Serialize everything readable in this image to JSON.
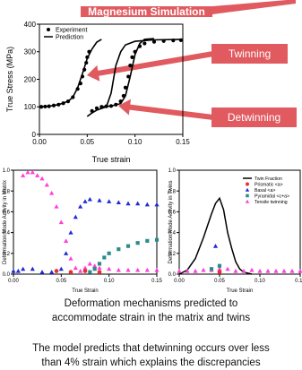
{
  "banner": "Magnesium Simulation",
  "callouts": {
    "twinning": "Twinning",
    "detwinning": "Detwinning"
  },
  "caption": {
    "line1": "Deformation mechanisms predicted to",
    "line2": "accommodate strain in the matrix and twins"
  },
  "bottom_text": {
    "line1": "The model predicts that detwinning occurs over less",
    "line2": "than 4% strain which explains the discrepancies"
  },
  "colors": {
    "callout": "#e05a5f",
    "prismatic": "#e8302b",
    "basal": "#1f2bd6",
    "pyramidal": "#2a8c8a",
    "tensile_twin": "#ff3fd8"
  },
  "chart_data": [
    {
      "type": "line",
      "xlabel": "True strain",
      "ylabel": "True Stress (MPa)",
      "xlim": [
        0,
        0.15
      ],
      "ylim": [
        0,
        400
      ],
      "xticks": [
        "0.00",
        "0.05",
        "0.10",
        "0.15"
      ],
      "yticks": [
        "0",
        "100",
        "200",
        "300",
        "400"
      ],
      "legend": [
        "Experiment",
        "Prediction"
      ],
      "series": [
        {
          "name": "Experiment",
          "style": "markers",
          "segments": [
            [
              [
                0.002,
                100
              ],
              [
                0.006,
                101
              ],
              [
                0.01,
                102
              ],
              [
                0.015,
                105
              ],
              [
                0.02,
                108
              ],
              [
                0.025,
                113
              ],
              [
                0.03,
                120
              ],
              [
                0.035,
                135
              ],
              [
                0.04,
                165
              ],
              [
                0.043,
                185
              ],
              [
                0.045,
                210
              ],
              [
                0.047,
                235
              ],
              [
                0.049,
                260
              ],
              [
                0.05,
                280
              ],
              [
                0.052,
                300
              ]
            ],
            [
              [
                0.055,
                85
              ],
              [
                0.06,
                95
              ],
              [
                0.065,
                100
              ],
              [
                0.07,
                102
              ],
              [
                0.075,
                103
              ],
              [
                0.08,
                108
              ],
              [
                0.085,
                120
              ],
              [
                0.088,
                140
              ],
              [
                0.09,
                170
              ],
              [
                0.093,
                210
              ],
              [
                0.095,
                250
              ],
              [
                0.097,
                280
              ],
              [
                0.1,
                300
              ],
              [
                0.105,
                320
              ],
              [
                0.11,
                330
              ],
              [
                0.12,
                336
              ],
              [
                0.13,
                339
              ],
              [
                0.14,
                341
              ],
              [
                0.148,
                342
              ]
            ]
          ]
        },
        {
          "name": "Prediction",
          "style": "line",
          "segments": [
            [
              [
                0,
                100
              ],
              [
                0.01,
                102
              ],
              [
                0.02,
                108
              ],
              [
                0.03,
                120
              ],
              [
                0.035,
                135
              ],
              [
                0.04,
                170
              ],
              [
                0.045,
                220
              ],
              [
                0.05,
                275
              ],
              [
                0.055,
                310
              ],
              [
                0.06,
                335
              ],
              [
                0.065,
                345
              ]
            ],
            [
              [
                0.05,
                65
              ],
              [
                0.055,
                78
              ],
              [
                0.06,
                88
              ],
              [
                0.07,
                100
              ],
              [
                0.075,
                150
              ],
              [
                0.08,
                250
              ],
              [
                0.085,
                300
              ],
              [
                0.09,
                325
              ],
              [
                0.1,
                338
              ],
              [
                0.12,
                343
              ],
              [
                0.15,
                345
              ]
            ],
            [
              [
                0.065,
                100
              ],
              [
                0.075,
                103
              ],
              [
                0.085,
                112
              ],
              [
                0.09,
                140
              ],
              [
                0.095,
                210
              ],
              [
                0.1,
                290
              ],
              [
                0.105,
                330
              ],
              [
                0.11,
                345
              ],
              [
                0.12,
                348
              ]
            ]
          ]
        }
      ]
    },
    {
      "type": "scatter",
      "xlabel": "True Strain",
      "ylabel": "Deformation Mode Activity in Matrix",
      "xlim": [
        0,
        0.15
      ],
      "ylim": [
        0,
        1
      ],
      "xticks": [
        "0.00",
        "0.05",
        "0.10",
        "0.15"
      ],
      "yticks": [
        "0.0",
        "0.2",
        "0.4",
        "0.6",
        "0.8",
        "1.0"
      ],
      "series": [
        {
          "name": "Tensile twinning",
          "color": "#ff3fd8",
          "marker": "triangle",
          "x": [
            0.01,
            0.015,
            0.02,
            0.025,
            0.03,
            0.035,
            0.04,
            0.045,
            0.05,
            0.055,
            0.06,
            0.065,
            0.07,
            0.075,
            0.08,
            0.085,
            0.09,
            0.1,
            0.11,
            0.12,
            0.13,
            0.14,
            0.15
          ],
          "y": [
            0.95,
            0.98,
            0.98,
            0.95,
            0.92,
            0.86,
            0.78,
            0.65,
            0.5,
            0.32,
            0.15,
            0.06,
            0.03,
            0.06,
            0.1,
            0.08,
            0.06,
            0.05,
            0.04,
            0.04,
            0.04,
            0.04,
            0.04
          ]
        },
        {
          "name": "Basal",
          "color": "#1f2bd6",
          "marker": "triangle",
          "x": [
            0.0,
            0.005,
            0.01,
            0.02,
            0.03,
            0.04,
            0.05,
            0.055,
            0.06,
            0.065,
            0.07,
            0.075,
            0.08,
            0.09,
            0.1,
            0.11,
            0.12,
            0.13,
            0.14,
            0.15
          ],
          "y": [
            0.03,
            0.03,
            0.05,
            0.05,
            0.02,
            0.02,
            0.05,
            0.2,
            0.4,
            0.55,
            0.65,
            0.7,
            0.72,
            0.71,
            0.7,
            0.69,
            0.68,
            0.68,
            0.67,
            0.67
          ]
        },
        {
          "name": "Pyramidal <c+a>",
          "color": "#2a8c8a",
          "marker": "square",
          "x": [
            0.08,
            0.085,
            0.09,
            0.095,
            0.1,
            0.11,
            0.12,
            0.13,
            0.14,
            0.15
          ],
          "y": [
            0.02,
            0.05,
            0.1,
            0.16,
            0.2,
            0.24,
            0.27,
            0.3,
            0.32,
            0.33
          ]
        },
        {
          "name": "Prismatic <a>",
          "color": "#e8302b",
          "marker": "circle",
          "x": [
            0.045,
            0.06,
            0.075,
            0.09
          ],
          "y": [
            0.03,
            0.02,
            0.03,
            0.02
          ]
        }
      ]
    },
    {
      "type": "scatter",
      "xlabel": "True Strain",
      "ylabel": "Deformation Mode Activity in Twins",
      "xlim": [
        0,
        0.15
      ],
      "ylim": [
        0,
        1
      ],
      "xticks": [
        "0.00",
        "0.05",
        "0.10",
        "0.15"
      ],
      "yticks": [
        "0.0",
        "0.2",
        "0.4",
        "0.6",
        "0.8",
        "1.0"
      ],
      "legend": [
        "Twin Fraction",
        "Prismatic <a>",
        "Basal <a>",
        "Pyramidal <c+a>",
        "Tensile twinning"
      ],
      "series": [
        {
          "name": "Twin Fraction",
          "color": "#000000",
          "marker": "line",
          "x": [
            0.0,
            0.01,
            0.02,
            0.03,
            0.04,
            0.045,
            0.05,
            0.055,
            0.06,
            0.065,
            0.07,
            0.075,
            0.08,
            0.09
          ],
          "y": [
            0.0,
            0.04,
            0.15,
            0.35,
            0.58,
            0.68,
            0.73,
            0.62,
            0.4,
            0.25,
            0.12,
            0.05,
            0.02,
            0.0
          ]
        },
        {
          "name": "Tensile twinning",
          "color": "#ff3fd8",
          "marker": "triangle",
          "x": [
            0.0,
            0.01,
            0.02,
            0.03,
            0.04,
            0.05,
            0.06,
            0.07,
            0.08,
            0.09,
            0.1,
            0.11,
            0.12,
            0.13,
            0.14,
            0.15
          ],
          "y": [
            0.03,
            0.03,
            0.03,
            0.04,
            0.04,
            0.05,
            0.05,
            0.03,
            0.03,
            0.04,
            0.03,
            0.03,
            0.03,
            0.03,
            0.03,
            0.03
          ]
        },
        {
          "name": "Basal",
          "color": "#1f2bd6",
          "marker": "triangle",
          "x": [
            0.045
          ],
          "y": [
            0.27
          ]
        },
        {
          "name": "Pyramidal <c+a>",
          "color": "#2a8c8a",
          "marker": "square",
          "x": [
            0.04,
            0.05
          ],
          "y": [
            0.05,
            0.08
          ]
        },
        {
          "name": "Prismatic <a>",
          "color": "#e8302b",
          "marker": "circle",
          "x": [
            0.05
          ],
          "y": [
            0.02
          ]
        }
      ]
    }
  ]
}
